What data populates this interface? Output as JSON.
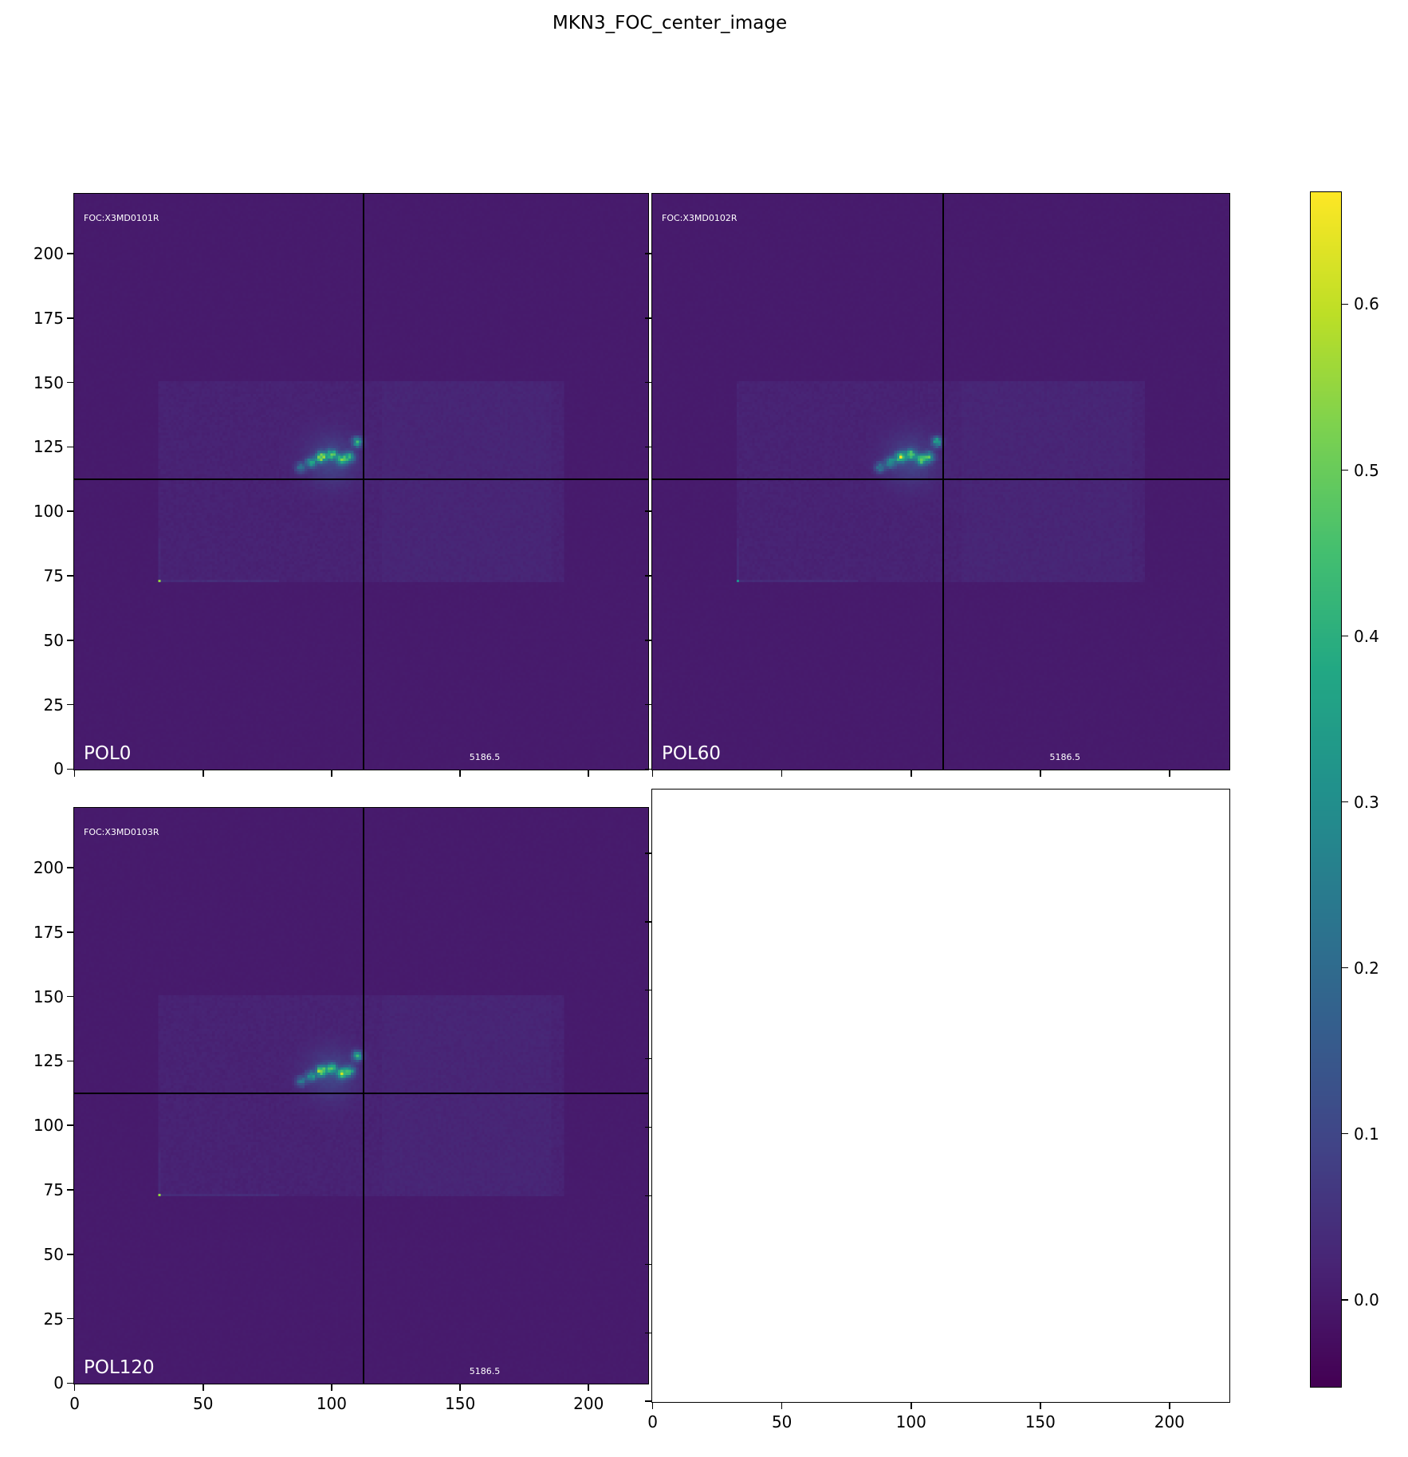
{
  "chart_data": {
    "type": "heatmap",
    "title": "MKN3_FOC_center_image",
    "colormap": "viridis",
    "panels": [
      {
        "label": "POL0",
        "id_text": "FOC:X3MD0101R",
        "value_text": "5186.5",
        "point_source_value": 0.55
      },
      {
        "label": "POL60",
        "id_text": "FOC:X3MD0102R",
        "value_text": "5186.5",
        "point_source_value": 0.3
      },
      {
        "label": "POL120",
        "id_text": "FOC:X3MD0103R",
        "value_text": "5186.5",
        "point_source_value": 0.55
      },
      {
        "label": "",
        "empty": true
      }
    ],
    "xlim": [
      -0.5,
      223.5
    ],
    "ylim": [
      -0.5,
      223.5
    ],
    "xticks": [
      "0",
      "50",
      "100",
      "150",
      "200"
    ],
    "yticks": [
      "0",
      "25",
      "50",
      "75",
      "100",
      "125",
      "150",
      "175",
      "200"
    ],
    "crosshair": {
      "x": 112.5,
      "y": 112.5
    },
    "colorbar": {
      "range": [
        -0.053,
        0.668
      ],
      "ticks": [
        "0.0",
        "0.1",
        "0.2",
        "0.3",
        "0.4",
        "0.5",
        "0.6"
      ]
    },
    "background_color": "#481f6e"
  }
}
